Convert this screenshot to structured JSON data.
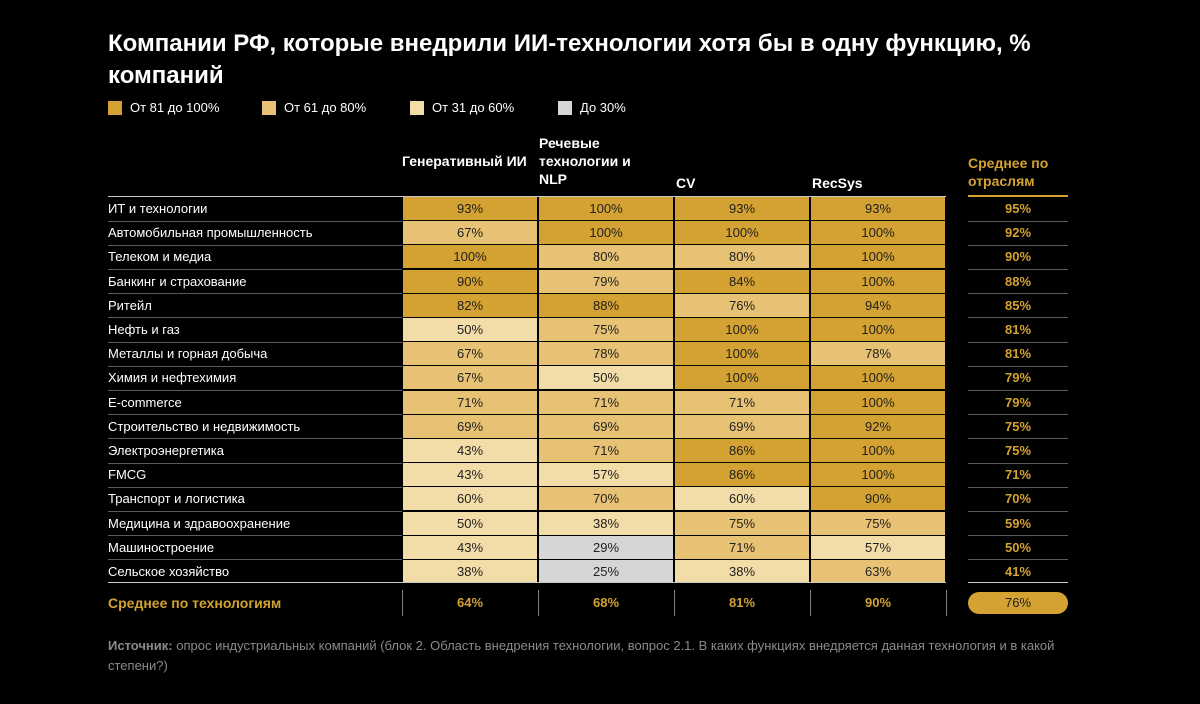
{
  "title": "Компании РФ, которые внедрили ИИ-технологии хотя бы в одну функцию, % компаний",
  "legend": [
    {
      "label": "От 81 до 100%",
      "color": "#D4A232"
    },
    {
      "label": "От 61 до 80%",
      "color": "#E8C274"
    },
    {
      "label": "От 31 до 60%",
      "color": "#F2DCA8"
    },
    {
      "label": "До 30%",
      "color": "#D6D6D6"
    }
  ],
  "columns": [
    "Генеративный ИИ",
    "Речевые технологии и NLP",
    "CV",
    "RecSys"
  ],
  "avg_column_label": "Среднее по отраслям",
  "footer": {
    "label": "Среднее по технологиям",
    "values": [
      "64%",
      "68%",
      "81%",
      "90%"
    ],
    "overall": "76%"
  },
  "source": {
    "prefix": "Источник:",
    "text": " опрос индустриальных компаний (блок 2. Область внедрения технологии, вопрос 2.1. В каких функциях внедряется данная технология и в какой степени?)"
  },
  "chart_data": {
    "type": "heatmap",
    "title": "Компании РФ, которые внедрили ИИ-технологии хотя бы в одну функцию, % компаний",
    "columns": [
      "Генеративный ИИ",
      "Речевые технологии и NLP",
      "CV",
      "RecSys"
    ],
    "rows": [
      {
        "label": "ИТ и технологии",
        "values": [
          93,
          100,
          93,
          93
        ],
        "avg": 95
      },
      {
        "label": "Автомобильная промышленность",
        "values": [
          67,
          100,
          100,
          100
        ],
        "avg": 92
      },
      {
        "label": "Телеком и медиа",
        "values": [
          100,
          80,
          80,
          100
        ],
        "avg": 90
      },
      {
        "label": "Банкинг и страхование",
        "values": [
          90,
          79,
          84,
          100
        ],
        "avg": 88
      },
      {
        "label": "Ритейл",
        "values": [
          82,
          88,
          76,
          94
        ],
        "avg": 85
      },
      {
        "label": "Нефть и газ",
        "values": [
          50,
          75,
          100,
          100
        ],
        "avg": 81
      },
      {
        "label": "Металлы и горная добыча",
        "values": [
          67,
          78,
          100,
          78
        ],
        "avg": 81
      },
      {
        "label": "Химия и нефтехимия",
        "values": [
          67,
          50,
          100,
          100
        ],
        "avg": 79
      },
      {
        "label": "E-commerce",
        "values": [
          71,
          71,
          71,
          100
        ],
        "avg": 79
      },
      {
        "label": "Строительство и недвижимость",
        "values": [
          69,
          69,
          69,
          92
        ],
        "avg": 75
      },
      {
        "label": "Электроэнергетика",
        "values": [
          43,
          71,
          86,
          100
        ],
        "avg": 75
      },
      {
        "label": "FMCG",
        "values": [
          43,
          57,
          86,
          100
        ],
        "avg": 71
      },
      {
        "label": "Транспорт и логистика",
        "values": [
          60,
          70,
          60,
          90
        ],
        "avg": 70
      },
      {
        "label": "Медицина и здравоохранение",
        "values": [
          50,
          38,
          75,
          75
        ],
        "avg": 59
      },
      {
        "label": "Машиностроение",
        "values": [
          43,
          29,
          71,
          57
        ],
        "avg": 50
      },
      {
        "label": "Сельское хозяйство",
        "values": [
          38,
          25,
          38,
          63
        ],
        "avg": 41
      }
    ],
    "column_averages": [
      64,
      68,
      81,
      90
    ],
    "overall_average": 76,
    "unit": "%",
    "thresholds": [
      {
        "min": 81,
        "color": "#D4A232"
      },
      {
        "min": 61,
        "color": "#E8C274"
      },
      {
        "min": 31,
        "color": "#F2DCA8"
      },
      {
        "min": 0,
        "color": "#D6D6D6"
      }
    ]
  }
}
